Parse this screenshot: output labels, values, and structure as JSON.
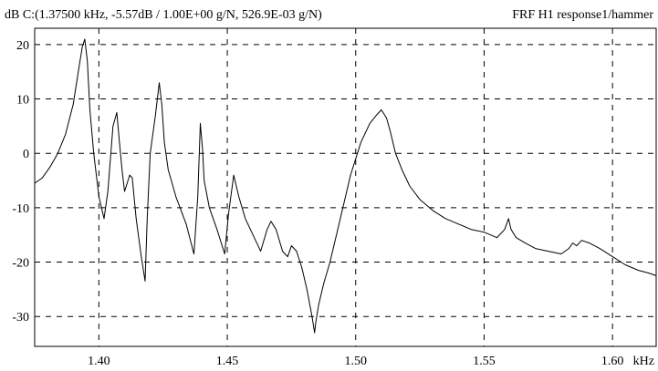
{
  "chart_data": {
    "type": "line",
    "header_left": "dB C:(1.37500  kHz, -5.57dB / 1.00E+00 g/N, 526.9E-03    g/N)",
    "header_right": "FRF H1 response1/hammer",
    "x_unit": "kHz",
    "y_unit": "dB",
    "xlim": [
      1.375,
      1.617
    ],
    "ylim": [
      -35.5,
      23
    ],
    "x_ticks": [
      1.4,
      1.45,
      1.5,
      1.55,
      1.6
    ],
    "x_tick_labels": [
      "1.40",
      "1.45",
      "1.50",
      "1.55",
      "1.60"
    ],
    "y_ticks": [
      20,
      10,
      0,
      -10,
      -20,
      -30
    ],
    "y_tick_labels": [
      "20",
      "10",
      "0",
      "-10",
      "-20",
      "-30"
    ],
    "grid": true,
    "grid_style": "dashed",
    "line_color": "#000000",
    "series": [
      {
        "x": [
          1.375,
          1.378,
          1.381,
          1.384,
          1.387,
          1.39,
          1.392,
          1.3935,
          1.3945,
          1.3955,
          1.3965,
          1.398,
          1.4,
          1.402,
          1.4035,
          1.4055,
          1.407,
          1.408,
          1.409,
          1.41,
          1.412,
          1.413,
          1.4145,
          1.4165,
          1.418,
          1.4188,
          1.42,
          1.422,
          1.4235,
          1.4245,
          1.4255,
          1.427,
          1.43,
          1.434,
          1.437,
          1.4385,
          1.4395,
          1.4403,
          1.441,
          1.443,
          1.446,
          1.449,
          1.4505,
          1.4525,
          1.4545,
          1.457,
          1.46,
          1.463,
          1.4655,
          1.467,
          1.469,
          1.4715,
          1.4735,
          1.475,
          1.477,
          1.479,
          1.481,
          1.483,
          1.484,
          1.4845,
          1.4855,
          1.4875,
          1.49,
          1.494,
          1.498,
          1.502,
          1.5055,
          1.508,
          1.51,
          1.512,
          1.5135,
          1.5155,
          1.518,
          1.521,
          1.525,
          1.53,
          1.535,
          1.54,
          1.545,
          1.55,
          1.555,
          1.558,
          1.5595,
          1.5605,
          1.5625,
          1.566,
          1.57,
          1.575,
          1.58,
          1.583,
          1.5845,
          1.586,
          1.588,
          1.591,
          1.595,
          1.6,
          1.605,
          1.61,
          1.614,
          1.617
        ],
        "y": [
          -5.5,
          -4.5,
          -2.5,
          0,
          3.5,
          9,
          15,
          19.5,
          21,
          17,
          8,
          0,
          -8,
          -12,
          -7,
          5,
          7.5,
          2,
          -3,
          -7,
          -4,
          -4.5,
          -12,
          -19,
          -23.5,
          -12,
          0,
          7,
          13,
          9,
          2,
          -3,
          -8,
          -13,
          -18.5,
          -8,
          5.5,
          1,
          -5,
          -10,
          -14,
          -18.5,
          -11,
          -4,
          -8,
          -12,
          -15,
          -18,
          -14,
          -12.5,
          -14,
          -18,
          -19,
          -17,
          -18,
          -21,
          -25,
          -30,
          -33,
          -31,
          -28,
          -24,
          -20,
          -12,
          -4,
          2,
          5.5,
          7,
          8,
          6.5,
          4,
          0,
          -3,
          -6,
          -8.5,
          -10.5,
          -12,
          -13,
          -14,
          -14.5,
          -15.5,
          -14,
          -12,
          -14,
          -15.5,
          -16.5,
          -17.5,
          -18,
          -18.5,
          -17.5,
          -16.5,
          -17,
          -16,
          -16.5,
          -17.5,
          -19,
          -20.5,
          -21.5,
          -22,
          -22.5
        ]
      }
    ]
  }
}
